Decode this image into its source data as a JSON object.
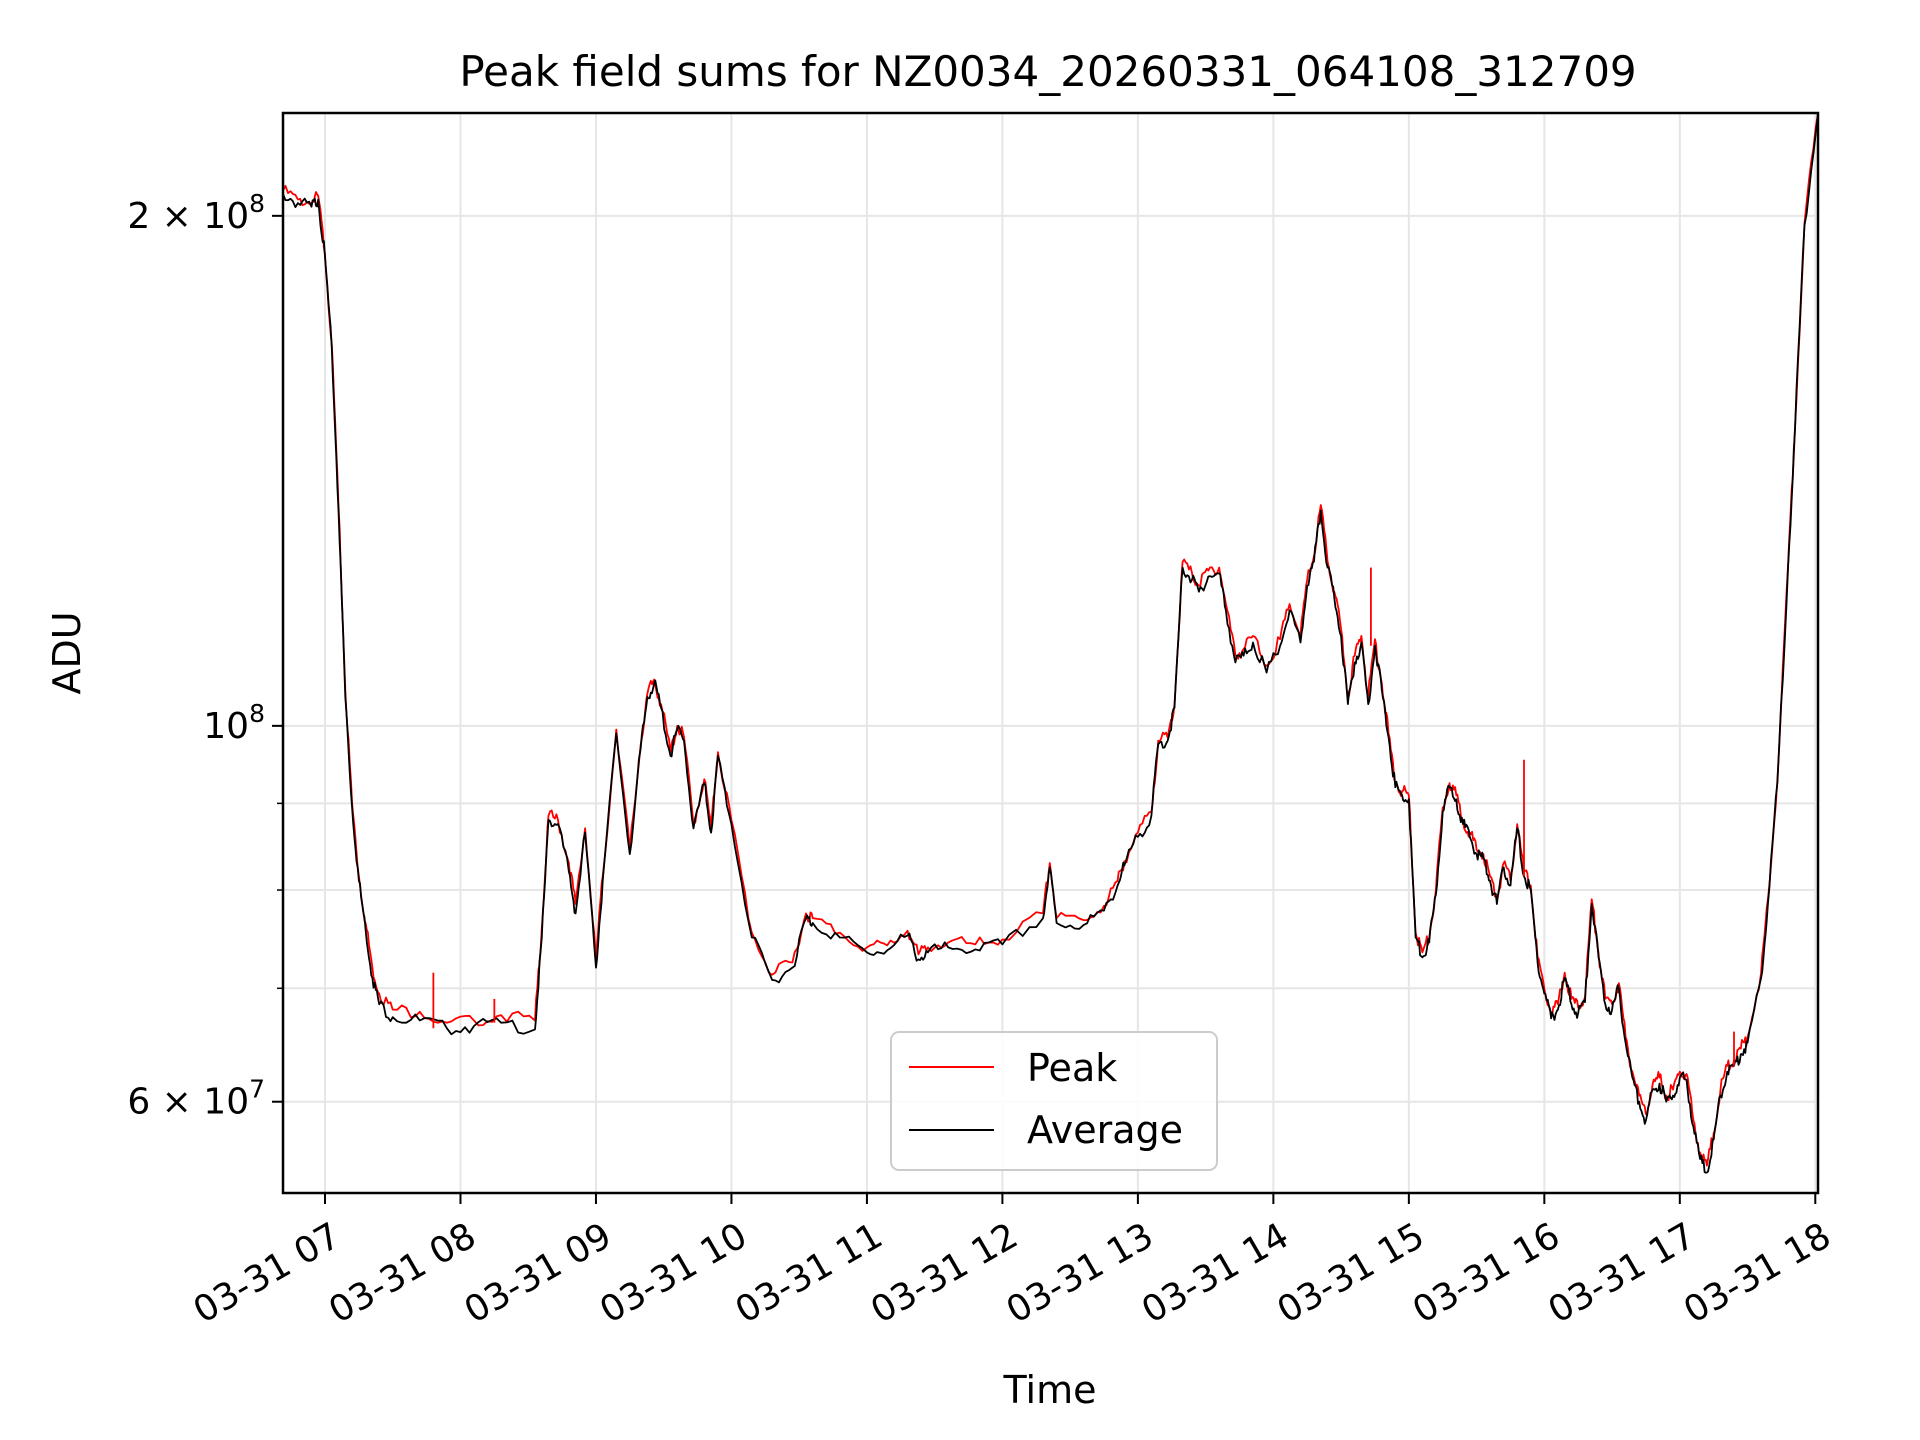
{
  "chart_data": {
    "type": "line",
    "title": "Peak field sums for NZ0034_20260331_064108_312709",
    "xlabel": "Time",
    "ylabel": "ADU",
    "yscale": "log",
    "grid": true,
    "legend_position": "lower-center",
    "xlim_hours": [
      6.69,
      18.02
    ],
    "ylim": [
      53000000,
      230000000
    ],
    "x_ticks": [
      {
        "value": 7,
        "label": "03-31 07"
      },
      {
        "value": 8,
        "label": "03-31 08"
      },
      {
        "value": 9,
        "label": "03-31 09"
      },
      {
        "value": 10,
        "label": "03-31 10"
      },
      {
        "value": 11,
        "label": "03-31 11"
      },
      {
        "value": 12,
        "label": "03-31 12"
      },
      {
        "value": 13,
        "label": "03-31 13"
      },
      {
        "value": 14,
        "label": "03-31 14"
      },
      {
        "value": 15,
        "label": "03-31 15"
      },
      {
        "value": 16,
        "label": "03-31 16"
      },
      {
        "value": 17,
        "label": "03-31 17"
      },
      {
        "value": 18,
        "label": "03-31 18"
      }
    ],
    "y_major_ticks": [
      {
        "value": 60000000,
        "mant": "6",
        "exp": "7"
      },
      {
        "value": 100000000,
        "mant": "",
        "exp": "8"
      },
      {
        "value": 200000000,
        "mant": "2",
        "exp": "8"
      }
    ],
    "y_minor_ticks": [
      70000000,
      80000000,
      90000000
    ],
    "x_hours": [
      6.69,
      6.8,
      6.9,
      6.95,
      7.0,
      7.05,
      7.1,
      7.15,
      7.2,
      7.25,
      7.3,
      7.35,
      7.4,
      7.5,
      7.7,
      7.9,
      8.1,
      8.3,
      8.55,
      8.6,
      8.65,
      8.72,
      8.8,
      8.85,
      8.92,
      9.0,
      9.05,
      9.15,
      9.25,
      9.33,
      9.38,
      9.43,
      9.48,
      9.55,
      9.6,
      9.65,
      9.72,
      9.8,
      9.85,
      9.9,
      10.0,
      10.15,
      10.3,
      10.45,
      10.55,
      10.6,
      10.8,
      11.0,
      11.15,
      11.3,
      11.38,
      11.45,
      11.6,
      11.8,
      12.0,
      12.3,
      12.35,
      12.4,
      12.6,
      12.75,
      12.85,
      12.9,
      13.0,
      13.1,
      13.15,
      13.22,
      13.27,
      13.33,
      13.4,
      13.45,
      13.52,
      13.6,
      13.65,
      13.72,
      13.78,
      13.85,
      13.95,
      14.05,
      14.12,
      14.2,
      14.25,
      14.3,
      14.35,
      14.4,
      14.45,
      14.5,
      14.55,
      14.6,
      14.65,
      14.7,
      14.75,
      14.8,
      14.85,
      14.9,
      14.95,
      15.0,
      15.05,
      15.1,
      15.15,
      15.2,
      15.25,
      15.3,
      15.35,
      15.4,
      15.45,
      15.5,
      15.55,
      15.6,
      15.65,
      15.7,
      15.75,
      15.8,
      15.85,
      15.9,
      15.95,
      16.0,
      16.05,
      16.1,
      16.15,
      16.2,
      16.25,
      16.3,
      16.35,
      16.4,
      16.45,
      16.5,
      16.55,
      16.6,
      16.65,
      16.7,
      16.75,
      16.8,
      16.85,
      16.9,
      16.95,
      17.0,
      17.05,
      17.1,
      17.15,
      17.2,
      17.25,
      17.3,
      17.35,
      17.4,
      17.45,
      17.5,
      17.6,
      17.65,
      17.72,
      17.8,
      17.85,
      17.92,
      18.02
    ],
    "series": [
      {
        "name": "Peak",
        "color": "#ff0000",
        "values": [
          207000000,
          204500000,
          203500000,
          205500000,
          190000000,
          168000000,
          135000000,
          105000000,
          90000000,
          81500000,
          76500000,
          72000000,
          69500000,
          68000000,
          67800000,
          66800000,
          67000000,
          67500000,
          67000000,
          76000000,
          88500000,
          88000000,
          83000000,
          78500000,
          87000000,
          73000000,
          81500000,
          99500000,
          84500000,
          97500000,
          104500000,
          106500000,
          103000000,
          96500000,
          100000000,
          98500000,
          87500000,
          93000000,
          87000000,
          96500000,
          88000000,
          75500000,
          71300000,
          72500000,
          77500000,
          77000000,
          75500000,
          74000000,
          74200000,
          75700000,
          73300000,
          74000000,
          74500000,
          74300000,
          74800000,
          77500000,
          83000000,
          77000000,
          76800000,
          78300000,
          81000000,
          83200000,
          86500000,
          89000000,
          98000000,
          98400000,
          103000000,
          125000000,
          123000000,
          121000000,
          123500000,
          124000000,
          118000000,
          110000000,
          111000000,
          113000000,
          108500000,
          112500000,
          118000000,
          113000000,
          122000000,
          126000000,
          135000000,
          125000000,
          120000000,
          114000000,
          104000000,
          110000000,
          113000000,
          104000000,
          112500000,
          106000000,
          99000000,
          92500000,
          91500000,
          91000000,
          75500000,
          73500000,
          75000000,
          80000000,
          89500000,
          92500000,
          91000000,
          88000000,
          86500000,
          84500000,
          84000000,
          81500000,
          79000000,
          83000000,
          81000000,
          87500000,
          82000000,
          80500000,
          73000000,
          70000000,
          67700000,
          68500000,
          71500000,
          69000000,
          68200000,
          69200000,
          79000000,
          73500000,
          69000000,
          68500000,
          70500000,
          65500000,
          62500000,
          60500000,
          59000000,
          61500000,
          62000000,
          60500000,
          61000000,
          62500000,
          62300000,
          58500000,
          56000000,
          55000000,
          57500000,
          61000000,
          63000000,
          63500000,
          64500000,
          65500000,
          71500000,
          79000000,
          93000000,
          125000000,
          150000000,
          198000000,
          230000000
        ]
      },
      {
        "name": "Average",
        "color": "#000000",
        "values": [
          206000000,
          203500000,
          202500000,
          204500000,
          189000000,
          167000000,
          134000000,
          104000000,
          89500000,
          81000000,
          75800000,
          71000000,
          68500000,
          67300000,
          67000000,
          66300000,
          66500000,
          66800000,
          66200000,
          75000000,
          88000000,
          87500000,
          82000000,
          77500000,
          86500000,
          72000000,
          81000000,
          99000000,
          84000000,
          97000000,
          104000000,
          106000000,
          102500000,
          96000000,
          99500000,
          98000000,
          87000000,
          92500000,
          86500000,
          96000000,
          87500000,
          75000000,
          70800000,
          72000000,
          77000000,
          76500000,
          75000000,
          73500000,
          73700000,
          75200000,
          72800000,
          73500000,
          74000000,
          73800000,
          74300000,
          77000000,
          82500000,
          76500000,
          76300000,
          77800000,
          80500000,
          82700000,
          86000000,
          88500000,
          97500000,
          98000000,
          102500000,
          124000000,
          122000000,
          120000000,
          122500000,
          123000000,
          117000000,
          109000000,
          110000000,
          112000000,
          107500000,
          111500000,
          117000000,
          112000000,
          121000000,
          125000000,
          134000000,
          124000000,
          119000000,
          113000000,
          103000000,
          109000000,
          112000000,
          103000000,
          111500000,
          105000000,
          98500000,
          92000000,
          91000000,
          90500000,
          75000000,
          73000000,
          74500000,
          79500000,
          89000000,
          92000000,
          90500000,
          87500000,
          86000000,
          84000000,
          83500000,
          81000000,
          78500000,
          82500000,
          80500000,
          87000000,
          81500000,
          80000000,
          72500000,
          69500000,
          67200000,
          68000000,
          71000000,
          68500000,
          67700000,
          68700000,
          78500000,
          73000000,
          68500000,
          68000000,
          70000000,
          65000000,
          62000000,
          60000000,
          58500000,
          61000000,
          61500000,
          60000000,
          60500000,
          62000000,
          61800000,
          58000000,
          55500000,
          54500000,
          57000000,
          60500000,
          62500000,
          63000000,
          64000000,
          65000000,
          71000000,
          78500000,
          92500000,
          124500000,
          149500000,
          197500000,
          229500000
        ]
      }
    ],
    "spikes": [
      {
        "x": 7.8,
        "value": 71500000
      },
      {
        "x": 8.25,
        "value": 69000000
      },
      {
        "x": 14.72,
        "value": 124000000
      },
      {
        "x": 15.85,
        "value": 95500000
      },
      {
        "x": 17.4,
        "value": 66000000
      }
    ]
  }
}
